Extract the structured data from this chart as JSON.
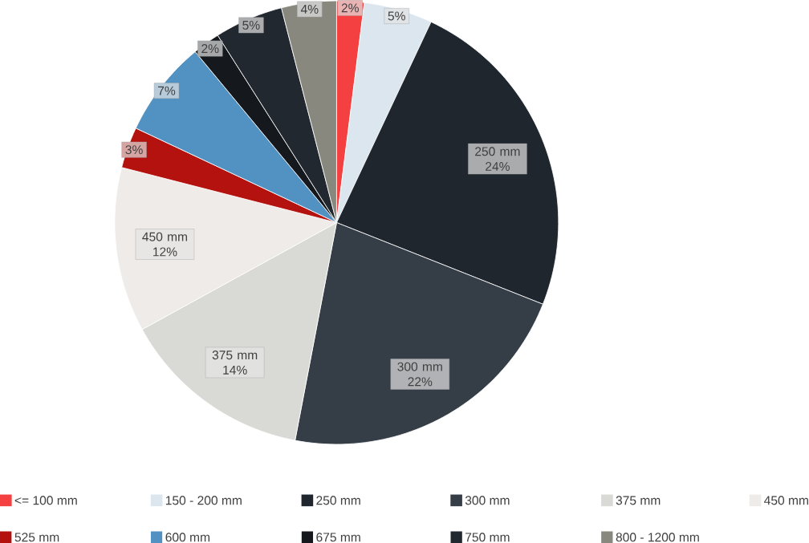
{
  "chart_data": {
    "type": "pie",
    "categories": [
      "<= 100 mm",
      "150 - 200 mm",
      "250 mm",
      "300 mm",
      "375 mm",
      "450 mm",
      "525 mm",
      "600 mm",
      "675 mm",
      "750 mm",
      "800 - 1200 mm"
    ],
    "values": [
      2,
      5,
      24,
      22,
      14,
      12,
      3,
      7,
      2,
      5,
      4
    ],
    "colors": [
      "#f44040",
      "#dbe6ef",
      "#1f262d",
      "#353d47",
      "#d9d9d5",
      "#eeebe8",
      "#b3120f",
      "#5292c3",
      "#15191e",
      "#222830",
      "#88887f"
    ],
    "value_labels": [
      "2%",
      "5%",
      "250 mm 24%",
      "300 mm 22%",
      "375 mm 14%",
      "450 mm 12%",
      "3%",
      "7%",
      "2%",
      "5%",
      "4%"
    ],
    "legend": "bottom"
  }
}
